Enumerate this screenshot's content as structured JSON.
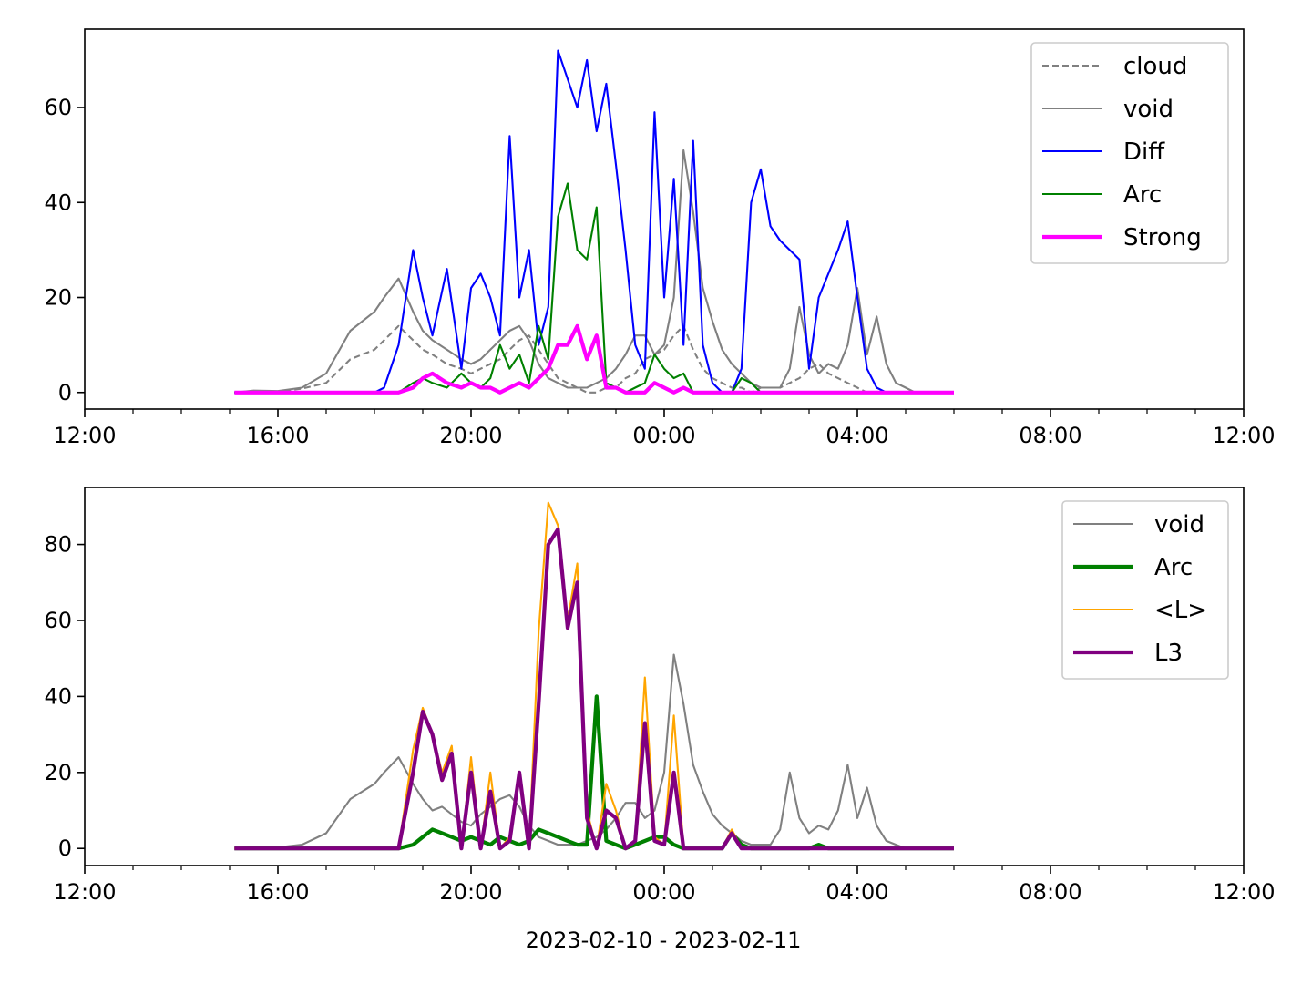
{
  "xlabel_bottom": "2023-02-10 - 2023-02-11",
  "chart_data": [
    {
      "type": "line",
      "xlabel": "",
      "ylabel": "",
      "x_unit": "hours since 2023-02-10 12:00",
      "xlim": [
        0,
        24
      ],
      "ylim": [
        -3.5,
        76.5
      ],
      "x_ticks": [
        0,
        4,
        8,
        12,
        16,
        20,
        24
      ],
      "x_ticklabels": [
        "12:00",
        "16:00",
        "20:00",
        "00:00",
        "04:00",
        "08:00",
        "12:00"
      ],
      "y_ticks": [
        0,
        20,
        40,
        60
      ],
      "y_ticklabels": [
        "0",
        "20",
        "40",
        "60"
      ],
      "legend_position": "top-right",
      "x": [
        3.1,
        3.5,
        4.0,
        4.5,
        5.0,
        5.5,
        6.0,
        6.2,
        6.5,
        6.8,
        7.0,
        7.2,
        7.5,
        7.8,
        8.0,
        8.2,
        8.4,
        8.6,
        8.8,
        9.0,
        9.2,
        9.4,
        9.6,
        9.8,
        10.0,
        10.2,
        10.4,
        10.6,
        10.8,
        11.0,
        11.2,
        11.4,
        11.6,
        11.8,
        12.0,
        12.2,
        12.4,
        12.6,
        12.8,
        13.0,
        13.2,
        13.4,
        13.6,
        13.8,
        14.0,
        14.2,
        14.4,
        14.6,
        14.8,
        15.0,
        15.2,
        15.4,
        15.6,
        15.8,
        16.0,
        16.2,
        16.4,
        16.6,
        16.8,
        17.0,
        17.2,
        17.5,
        18.0
      ],
      "series": [
        {
          "name": "cloud",
          "color": "#808080",
          "dash": "dashed",
          "width": 1.4,
          "values": [
            0,
            0.3,
            0.2,
            0.8,
            2,
            7,
            9,
            11,
            14,
            11,
            9,
            8,
            6,
            5,
            4,
            5,
            6,
            7,
            9,
            11,
            12,
            9,
            6,
            3,
            2,
            1,
            0,
            0,
            1,
            1,
            3,
            4,
            7,
            8,
            9,
            12,
            14,
            9,
            5,
            3,
            2,
            1,
            1,
            0,
            1,
            1,
            1,
            2,
            3,
            5,
            6,
            4,
            3,
            2,
            1,
            0,
            0,
            0,
            0,
            0,
            0,
            0,
            0
          ]
        },
        {
          "name": "void",
          "color": "#808080",
          "dash": "solid",
          "width": 1.4,
          "values": [
            0,
            0.4,
            0.3,
            1,
            4,
            13,
            17,
            20,
            24,
            17,
            13,
            11,
            9,
            7,
            6,
            7,
            9,
            11,
            13,
            14,
            11,
            6,
            3,
            2,
            1,
            1,
            1,
            2,
            3,
            5,
            8,
            12,
            12,
            8,
            10,
            20,
            51,
            38,
            22,
            15,
            9,
            6,
            4,
            2,
            1,
            1,
            1,
            5,
            18,
            8,
            4,
            6,
            5,
            10,
            22,
            8,
            16,
            6,
            2,
            1,
            0,
            0,
            0
          ]
        },
        {
          "name": "Diff",
          "color": "#0000ff",
          "dash": "solid",
          "width": 1.4,
          "values": [
            0,
            0,
            0,
            0,
            0,
            0,
            0,
            1,
            10,
            30,
            20,
            12,
            26,
            5,
            22,
            25,
            20,
            12,
            54,
            20,
            30,
            10,
            18,
            72,
            66,
            60,
            70,
            55,
            65,
            48,
            30,
            10,
            5,
            59,
            20,
            45,
            10,
            53,
            10,
            2,
            0,
            0,
            5,
            40,
            47,
            35,
            32,
            30,
            28,
            5,
            20,
            25,
            30,
            36,
            20,
            5,
            1,
            0,
            0,
            0,
            0,
            0,
            0
          ]
        },
        {
          "name": "Arc",
          "color": "#008000",
          "dash": "solid",
          "width": 1.4,
          "values": [
            0,
            0,
            0,
            0,
            0,
            0,
            0,
            0,
            0,
            2,
            3,
            2,
            1,
            4,
            2,
            1,
            3,
            10,
            5,
            8,
            2,
            14,
            7,
            37,
            44,
            30,
            28,
            39,
            2,
            1,
            0,
            1,
            2,
            8,
            5,
            3,
            4,
            0,
            0,
            0,
            0,
            0,
            3,
            2,
            0,
            0,
            0,
            0,
            0,
            0,
            0,
            0,
            0,
            0,
            0,
            0,
            0,
            0,
            0,
            0,
            0,
            0,
            0
          ]
        },
        {
          "name": "Strong",
          "color": "#ff00ff",
          "dash": "solid",
          "width": 2.8,
          "values": [
            0,
            0,
            0,
            0,
            0,
            0,
            0,
            0,
            0,
            1,
            3,
            4,
            2,
            1,
            2,
            1,
            1,
            0,
            1,
            2,
            1,
            3,
            5,
            10,
            10,
            14,
            7,
            12,
            1,
            1,
            0,
            0,
            0,
            2,
            1,
            0,
            1,
            0,
            0,
            0,
            0,
            0,
            0,
            0,
            0,
            0,
            0,
            0,
            0,
            0,
            0,
            0,
            0,
            0,
            0,
            0,
            0,
            0,
            0,
            0,
            0,
            0,
            0
          ]
        }
      ]
    },
    {
      "type": "line",
      "xlabel": "2023-02-10 - 2023-02-11",
      "ylabel": "",
      "x_unit": "hours since 2023-02-10 12:00",
      "xlim": [
        0,
        24
      ],
      "ylim": [
        -4.5,
        95
      ],
      "x_ticks": [
        0,
        4,
        8,
        12,
        16,
        20,
        24
      ],
      "x_ticklabels": [
        "12:00",
        "16:00",
        "20:00",
        "00:00",
        "04:00",
        "08:00",
        "12:00"
      ],
      "y_ticks": [
        0,
        20,
        40,
        60,
        80
      ],
      "y_ticklabels": [
        "0",
        "20",
        "40",
        "60",
        "80"
      ],
      "legend_position": "top-right",
      "x": [
        3.1,
        3.5,
        4.0,
        4.5,
        5.0,
        5.5,
        6.0,
        6.2,
        6.5,
        6.8,
        7.0,
        7.2,
        7.4,
        7.6,
        7.8,
        8.0,
        8.2,
        8.4,
        8.6,
        8.8,
        9.0,
        9.2,
        9.4,
        9.6,
        9.8,
        10.0,
        10.2,
        10.4,
        10.6,
        10.8,
        11.0,
        11.2,
        11.4,
        11.6,
        11.8,
        12.0,
        12.2,
        12.4,
        12.6,
        12.8,
        13.0,
        13.2,
        13.4,
        13.6,
        13.8,
        14.0,
        14.2,
        14.4,
        14.6,
        14.8,
        15.0,
        15.2,
        15.4,
        15.6,
        15.8,
        16.0,
        16.2,
        16.4,
        16.6,
        16.8,
        17.0,
        17.2,
        17.5,
        18.0
      ],
      "series": [
        {
          "name": "void",
          "color": "#808080",
          "width": 1.4,
          "values": [
            0,
            0.4,
            0.3,
            1,
            4,
            13,
            17,
            20,
            24,
            17,
            13,
            10,
            11,
            9,
            7,
            6,
            9,
            11,
            13,
            14,
            11,
            6,
            3,
            2,
            1,
            1,
            1,
            2,
            3,
            5,
            8,
            12,
            12,
            8,
            10,
            20,
            51,
            38,
            22,
            15,
            9,
            6,
            4,
            2,
            1,
            1,
            1,
            5,
            20,
            8,
            4,
            6,
            5,
            10,
            22,
            8,
            16,
            6,
            2,
            1,
            0,
            0,
            0,
            0
          ]
        },
        {
          "name": "Arc",
          "color": "#008000",
          "width": 2.8,
          "values": [
            0,
            0,
            0,
            0,
            0,
            0,
            0,
            0,
            0,
            1,
            3,
            5,
            4,
            3,
            2,
            3,
            2,
            1,
            3,
            2,
            1,
            2,
            5,
            4,
            3,
            2,
            1,
            1,
            40,
            2,
            1,
            0,
            1,
            2,
            3,
            3,
            1,
            0,
            0,
            0,
            0,
            0,
            4,
            1,
            0,
            0,
            0,
            0,
            0,
            0,
            0,
            1,
            0,
            0,
            0,
            0,
            0,
            0,
            0,
            0,
            0,
            0,
            0,
            0
          ]
        },
        {
          "name": "<L>",
          "color": "#ffa500",
          "width": 1.4,
          "values": [
            0,
            0,
            0,
            0,
            0,
            0,
            0,
            0,
            0,
            26,
            37,
            30,
            20,
            27,
            0,
            24,
            0,
            20,
            0,
            3,
            20,
            0,
            57,
            91,
            85,
            60,
            75,
            10,
            0,
            17,
            10,
            0,
            2,
            45,
            3,
            1,
            35,
            0,
            0,
            0,
            0,
            0,
            5,
            0,
            0,
            0,
            0,
            0,
            0,
            0,
            0,
            0,
            0,
            0,
            0,
            0,
            0,
            0,
            0,
            0,
            0,
            0,
            0,
            0
          ]
        },
        {
          "name": "L3",
          "color": "#800080",
          "width": 2.8,
          "values": [
            0,
            0,
            0,
            0,
            0,
            0,
            0,
            0,
            0,
            20,
            36,
            30,
            18,
            25,
            0,
            20,
            0,
            15,
            0,
            2,
            20,
            0,
            38,
            80,
            84,
            58,
            70,
            8,
            0,
            10,
            8,
            0,
            2,
            33,
            2,
            1,
            20,
            0,
            0,
            0,
            0,
            0,
            4,
            0,
            0,
            0,
            0,
            0,
            0,
            0,
            0,
            0,
            0,
            0,
            0,
            0,
            0,
            0,
            0,
            0,
            0,
            0,
            0,
            0
          ]
        }
      ]
    }
  ]
}
